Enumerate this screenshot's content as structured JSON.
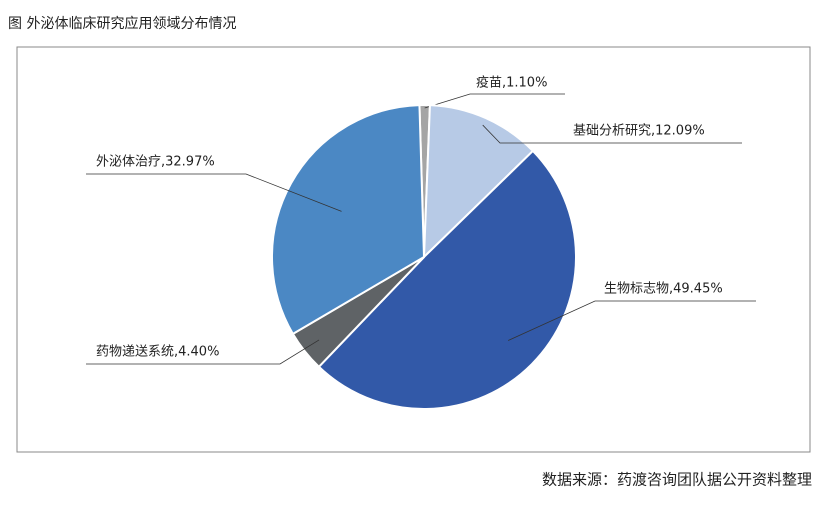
{
  "chart_data": {
    "type": "pie",
    "title": "图  外泌体临床研究应用领域分布情况",
    "source": "数据来源：药渡咨询团队据公开资料整理",
    "values": [
      1.1,
      12.09,
      49.45,
      4.4,
      32.97
    ],
    "value_labels": [
      "疫苗,1.10%",
      "基础分析研究,12.09%",
      "生物标志物,49.45%",
      "药物递送系统,4.40%",
      "外泌体治疗,32.97%"
    ],
    "colors": [
      "#a5a5a5",
      "#b7cae6",
      "#3259a8",
      "#5f6366",
      "#4b88c4"
    ]
  }
}
